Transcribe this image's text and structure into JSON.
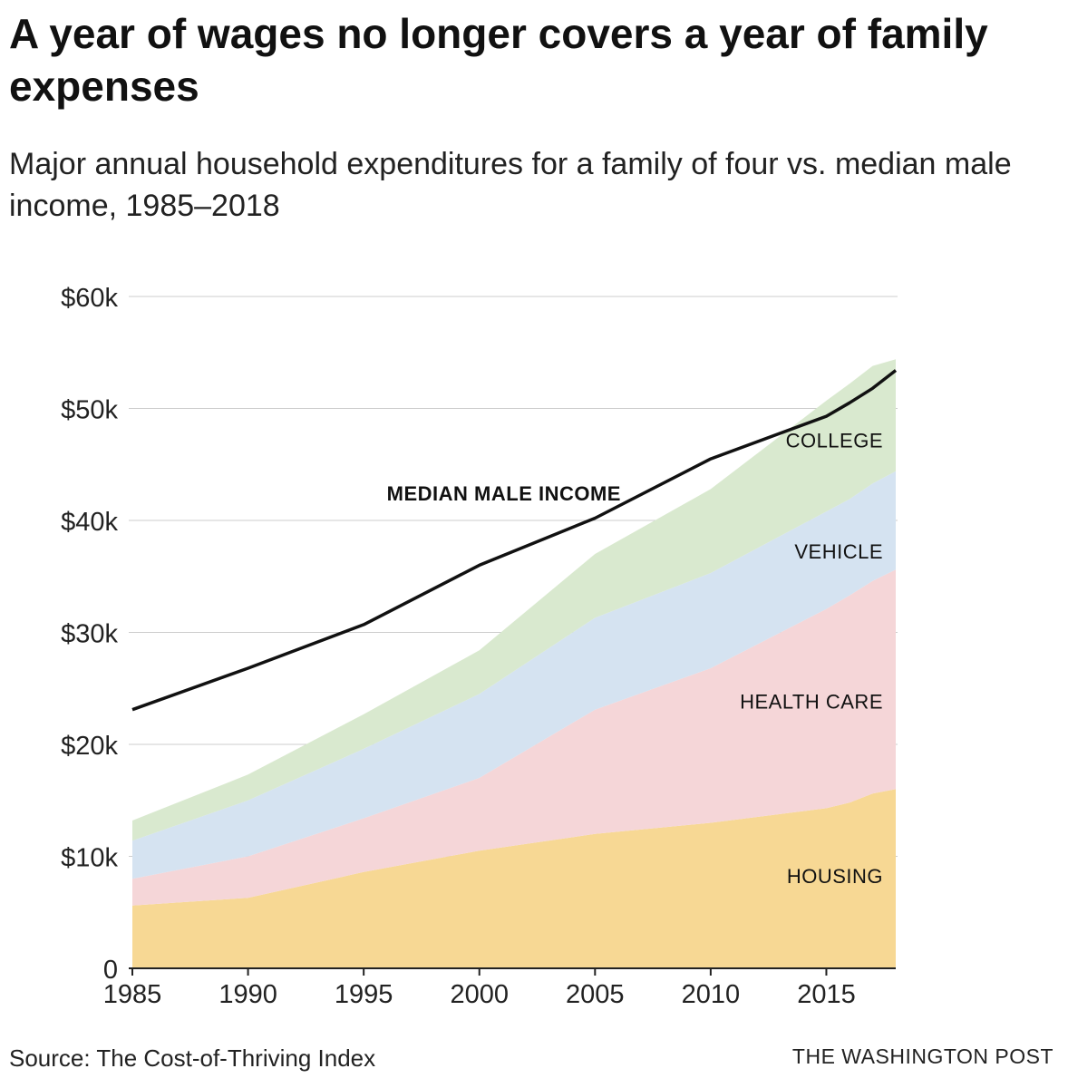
{
  "title": "A year of wages no longer covers a year of family expenses",
  "subtitle": "Major annual household expenditures for a family of four vs. median male income, 1985–2018",
  "source": "Source: The Cost-of-Thriving Index",
  "credit": "THE WASHINGTON POST",
  "colors": {
    "housing": "#f7d894",
    "health_care": "#f5d6d8",
    "vehicle": "#d5e3f1",
    "college": "#d9e9cf",
    "income_line": "#111111",
    "grid": "#cccccc"
  },
  "chart_data": {
    "type": "area",
    "stacked": true,
    "title": "A year of wages no longer covers a year of family expenses",
    "xlabel": "",
    "ylabel": "",
    "xlim": [
      1985,
      2018
    ],
    "ylim": [
      0,
      60000
    ],
    "x_ticks": [
      1985,
      1990,
      1995,
      2000,
      2005,
      2010,
      2015
    ],
    "x_tick_labels": [
      "1985",
      "1990",
      "1995",
      "2000",
      "2005",
      "2010",
      "2015"
    ],
    "y_ticks": [
      0,
      10000,
      20000,
      30000,
      40000,
      50000,
      60000
    ],
    "y_tick_labels": [
      "0",
      "$10k",
      "$20k",
      "$30k",
      "$40k",
      "$50k",
      "$60k"
    ],
    "grid": true,
    "x": [
      1985,
      1990,
      1995,
      2000,
      2005,
      2010,
      2015,
      2016,
      2017,
      2018
    ],
    "series": [
      {
        "name": "HOUSING",
        "key": "housing",
        "values": [
          5600,
          6300,
          8600,
          10500,
          12000,
          13000,
          14300,
          14800,
          15600,
          16000
        ]
      },
      {
        "name": "HEALTH CARE",
        "key": "health_care",
        "values": [
          2400,
          3700,
          4800,
          6500,
          11100,
          13800,
          17800,
          18500,
          19000,
          19600
        ]
      },
      {
        "name": "VEHICLE",
        "key": "vehicle",
        "values": [
          3400,
          5000,
          6200,
          7500,
          8200,
          8500,
          8700,
          8600,
          8700,
          8800
        ]
      },
      {
        "name": "COLLEGE",
        "key": "college",
        "values": [
          1800,
          2300,
          3100,
          3900,
          5700,
          7500,
          9900,
          10300,
          10500,
          10000
        ]
      }
    ],
    "line": {
      "name": "MEDIAN MALE INCOME",
      "values": [
        23100,
        26800,
        30700,
        36000,
        40200,
        45500,
        49300,
        50500,
        51800,
        53400
      ]
    },
    "labels": {
      "income": "MEDIAN MALE INCOME",
      "college": "COLLEGE",
      "vehicle": "VEHICLE",
      "health_care": "HEALTH CARE",
      "housing": "HOUSING"
    }
  }
}
